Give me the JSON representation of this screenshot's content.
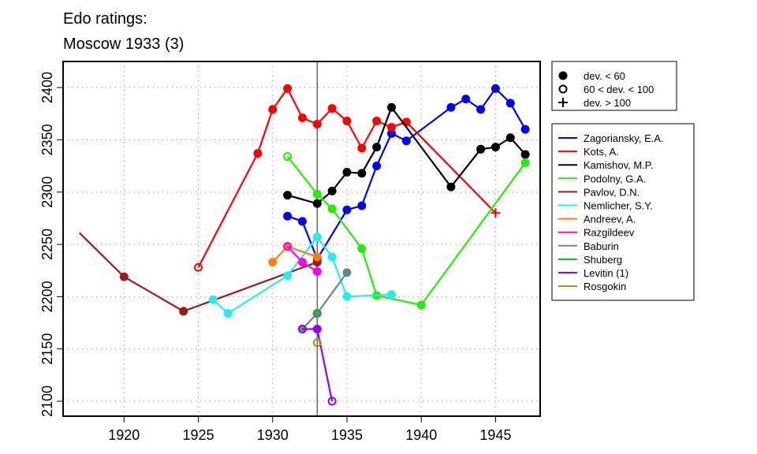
{
  "chart_data": {
    "type": "line",
    "title_lines": [
      "Edo ratings:",
      "Moscow 1933 (3)"
    ],
    "xlim": [
      1915.9,
      1948
    ],
    "ylim": [
      2085.7,
      2424.9
    ],
    "xticks": [
      1920,
      1925,
      1930,
      1935,
      1940,
      1945
    ],
    "yticks": [
      2100,
      2150,
      2200,
      2250,
      2300,
      2350,
      2400
    ],
    "grid": true,
    "marker_line_year": 1933,
    "marker_legend": {
      "placement": "top-right outside",
      "items": [
        {
          "label": "dev. < 60",
          "marker": "filled"
        },
        {
          "label": "60 < dev. < 100",
          "marker": "open"
        },
        {
          "label": "dev. > 100",
          "marker": "plus"
        }
      ]
    },
    "legend_placement": "right outside",
    "series": [
      {
        "name": "Zagoriansky, E.A.",
        "color": "#0000ff",
        "points": [
          [
            1931,
            2277,
            "filled"
          ],
          [
            1932,
            2272,
            "filled"
          ],
          [
            1933,
            2236,
            "filled"
          ],
          [
            1935,
            2283,
            "filled"
          ],
          [
            1936,
            2287,
            "filled"
          ],
          [
            1937,
            2325,
            "filled"
          ],
          [
            1938,
            2356,
            "filled"
          ],
          [
            1939,
            2349,
            "filled"
          ],
          [
            1942,
            2381,
            "filled"
          ],
          [
            1943,
            2389,
            "filled"
          ],
          [
            1944,
            2379,
            "filled"
          ],
          [
            1945,
            2399,
            "filled"
          ],
          [
            1946,
            2385,
            "filled"
          ],
          [
            1947,
            2360,
            "filled"
          ]
        ]
      },
      {
        "name": "Kots, A.",
        "color": "#ff0000",
        "points": [
          [
            1925,
            2228,
            "open"
          ],
          [
            1929,
            2337,
            "filled"
          ],
          [
            1930,
            2379,
            "filled"
          ],
          [
            1931,
            2399,
            "filled"
          ],
          [
            1932,
            2371,
            "filled"
          ],
          [
            1933,
            2365,
            "filled"
          ],
          [
            1934,
            2380,
            "filled"
          ],
          [
            1935,
            2368,
            "filled"
          ],
          [
            1936,
            2342,
            "filled"
          ],
          [
            1937,
            2368,
            "filled"
          ],
          [
            1938,
            2362,
            "filled"
          ],
          [
            1939,
            2367,
            "filled"
          ],
          [
            1945,
            2280,
            "plus"
          ]
        ]
      },
      {
        "name": "Kamishov, M.P.",
        "color": "#000000",
        "points": [
          [
            1931,
            2297,
            "filled"
          ],
          [
            1933,
            2289,
            "filled"
          ],
          [
            1934,
            2301,
            "filled"
          ],
          [
            1935,
            2319,
            "filled"
          ],
          [
            1936,
            2318,
            "filled"
          ],
          [
            1937,
            2343,
            "filled"
          ],
          [
            1938,
            2381,
            "filled"
          ],
          [
            1942,
            2305,
            "filled"
          ],
          [
            1944,
            2341,
            "filled"
          ],
          [
            1945,
            2343,
            "filled"
          ],
          [
            1946,
            2352,
            "filled"
          ],
          [
            1947,
            2336,
            "filled"
          ]
        ]
      },
      {
        "name": "Podolny, G.A.",
        "color": "#22ee00",
        "points": [
          [
            1931,
            2334,
            "open"
          ],
          [
            1933,
            2298,
            "filled"
          ],
          [
            1934,
            2284,
            "filled"
          ],
          [
            1936,
            2246,
            "filled"
          ],
          [
            1937,
            2201,
            "filled"
          ],
          [
            1940,
            2192,
            "filled"
          ],
          [
            1947,
            2328,
            "filled"
          ]
        ]
      },
      {
        "name": "Pavlov, D.N.",
        "color": "#a01818",
        "points": [
          [
            1917,
            2261,
            "none"
          ],
          [
            1920,
            2219,
            "filled"
          ],
          [
            1924,
            2186,
            "filled"
          ],
          [
            1933,
            2233,
            "filled"
          ]
        ]
      },
      {
        "name": "Nemlicher, S.Y.",
        "color": "#22eeee",
        "points": [
          [
            1926,
            2197,
            "filled"
          ],
          [
            1927,
            2184,
            "filled"
          ],
          [
            1931,
            2220,
            "filled"
          ],
          [
            1933,
            2257,
            "filled"
          ],
          [
            1934,
            2238,
            "filled"
          ],
          [
            1935,
            2200,
            "filled"
          ],
          [
            1938,
            2202,
            "filled"
          ]
        ]
      },
      {
        "name": "Andreev, A.",
        "color": "#ff7f0e",
        "points": [
          [
            1930,
            2233,
            "filled"
          ],
          [
            1931,
            2248,
            "filled"
          ],
          [
            1933,
            2238,
            "filled"
          ]
        ]
      },
      {
        "name": "Razgildeev",
        "color": "#ff00ee",
        "points": [
          [
            1931,
            2248,
            "open"
          ],
          [
            1932,
            2233,
            "filled"
          ],
          [
            1933,
            2224,
            "filled"
          ]
        ]
      },
      {
        "name": "Baburin",
        "color": "#668888",
        "points": [
          [
            1932,
            2169,
            "filled"
          ],
          [
            1933,
            2184,
            "filled"
          ],
          [
            1935,
            2223,
            "filled"
          ]
        ]
      },
      {
        "name": "Shuberg",
        "color": "#1aaa1a",
        "points": [
          [
            1933,
            2184,
            "open"
          ]
        ]
      },
      {
        "name": "Levitin (1)",
        "color": "#9900ee",
        "points": [
          [
            1932,
            2169,
            "open"
          ],
          [
            1933,
            2169,
            "filled"
          ],
          [
            1934,
            2100,
            "open"
          ]
        ]
      },
      {
        "name": "Rosgokin",
        "color": "#999900",
        "points": [
          [
            1933,
            2156,
            "open"
          ]
        ]
      }
    ]
  }
}
